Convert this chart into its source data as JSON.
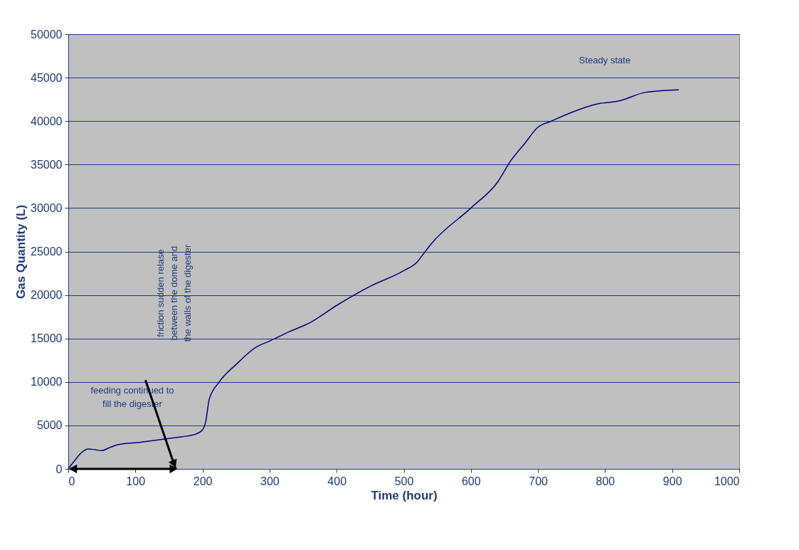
{
  "chart_data": {
    "type": "line",
    "xlabel": "Time (hour)",
    "ylabel": "Gas Quantity (L)",
    "x": [
      0,
      10,
      20,
      30,
      40,
      50,
      60,
      75,
      100,
      130,
      160,
      190,
      200,
      205,
      210,
      225,
      250,
      280,
      300,
      330,
      360,
      400,
      450,
      500,
      520,
      530,
      540,
      600,
      640,
      660,
      680,
      700,
      720,
      750,
      790,
      820,
      860,
      910
    ],
    "series": [
      {
        "color": "#000080",
        "values": [
          0,
          1000,
          1900,
          2300,
          2200,
          2100,
          2400,
          2800,
          3000,
          3300,
          3600,
          4000,
          4500,
          5500,
          8000,
          10000,
          12000,
          14000,
          14700,
          15800,
          16800,
          18800,
          21000,
          22800,
          23800,
          24800,
          25800,
          30000,
          33000,
          35500,
          37400,
          39300,
          40000,
          41000,
          42000,
          42300,
          43300,
          43600
        ]
      }
    ],
    "xlim": [
      0,
      1000
    ],
    "xticks": [
      0,
      100,
      200,
      300,
      400,
      500,
      600,
      700,
      800,
      900,
      {
        "value": 1000,
        "label": "1000"
      }
    ],
    "ylim": [
      0,
      50000
    ],
    "yticks": [
      0,
      5000,
      10000,
      15000,
      20000,
      25000,
      30000,
      35000,
      40000,
      45000,
      50000
    ],
    "grid": "y",
    "marker": "none",
    "line_style": "solid",
    "annotations": [
      "Steady state",
      "feeding continued to\nfill the digester",
      "friction  sudden relase\nbetween the dome and\nthe walls of the digester"
    ]
  }
}
